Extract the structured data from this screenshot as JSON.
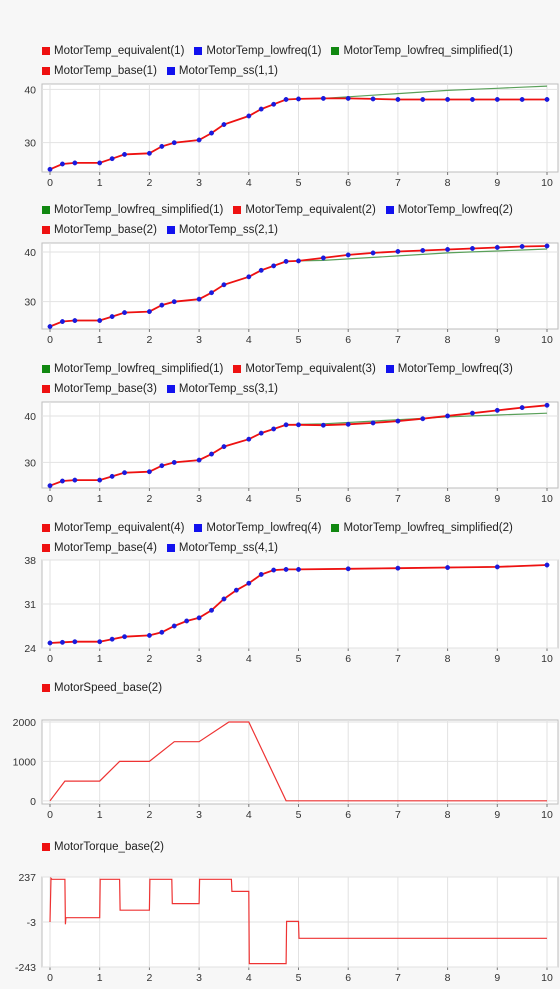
{
  "chart_data": [
    {
      "type": "line",
      "legend": [
        [
          "MotorTemp_equivalent(1)",
          "MotorTemp_lowfreq(1)",
          "MotorTemp_lowfreq_simplified(1)"
        ],
        [
          "MotorTemp_base(1)",
          "MotorTemp_ss(1,1)"
        ]
      ],
      "legend_colors": [
        [
          "#ee1111",
          "#1111ee",
          "#118811"
        ],
        [
          "#ee1111",
          "#1111ee"
        ]
      ],
      "xlim": [
        0,
        10
      ],
      "ylim": [
        24.5,
        41
      ],
      "xticks": [
        "0",
        "1",
        "2",
        "3",
        "4",
        "5",
        "6",
        "7",
        "8",
        "9",
        "10"
      ],
      "yticks": [
        30,
        40
      ],
      "grid": true,
      "series": [
        {
          "name": "MotorTemp_lowfreq_simplified(1)",
          "color": "#5aa05a",
          "marker": false,
          "x": [
            0,
            0.25,
            0.5,
            1,
            1.25,
            1.5,
            2,
            2.25,
            2.5,
            3,
            3.25,
            3.5,
            4,
            4.25,
            4.5,
            4.75,
            5,
            5.5,
            6,
            6.5,
            7,
            7.5,
            8,
            8.5,
            9,
            9.5,
            10
          ],
          "y": [
            25,
            26,
            26.2,
            26.2,
            27,
            27.8,
            28,
            29.3,
            30,
            30.5,
            31.8,
            33.4,
            35,
            36.3,
            37.2,
            38.1,
            38.2,
            38.3,
            38.6,
            38.9,
            39.2,
            39.5,
            39.8,
            40,
            40.2,
            40.4,
            40.6
          ]
        },
        {
          "name": "MotorTemp_equivalent(1)",
          "color": "#ee1111",
          "marker": true,
          "x": [
            0,
            0.25,
            0.5,
            1,
            1.25,
            1.5,
            2,
            2.25,
            2.5,
            3,
            3.25,
            3.5,
            4,
            4.25,
            4.5,
            4.75,
            5,
            5.5,
            6,
            6.5,
            7,
            7.5,
            8,
            8.5,
            9,
            9.5,
            10
          ],
          "y": [
            25,
            26,
            26.2,
            26.2,
            27,
            27.8,
            28,
            29.3,
            30,
            30.5,
            31.8,
            33.4,
            35,
            36.3,
            37.2,
            38.1,
            38.2,
            38.3,
            38.3,
            38.2,
            38.1,
            38.1,
            38.1,
            38.1,
            38.1,
            38.1,
            38.1
          ]
        }
      ]
    },
    {
      "type": "line",
      "legend": [
        [
          "MotorTemp_lowfreq_simplified(1)",
          "MotorTemp_equivalent(2)",
          "MotorTemp_lowfreq(2)"
        ],
        [
          "MotorTemp_base(2)",
          "MotorTemp_ss(2,1)"
        ]
      ],
      "legend_colors": [
        [
          "#118811",
          "#ee1111",
          "#1111ee"
        ],
        [
          "#ee1111",
          "#1111ee"
        ]
      ],
      "xlim": [
        0,
        10
      ],
      "ylim": [
        24.5,
        41.8
      ],
      "xticks": [
        "0",
        "1",
        "2",
        "3",
        "4",
        "5",
        "6",
        "7",
        "8",
        "9",
        "10"
      ],
      "yticks": [
        30,
        40
      ],
      "grid": true,
      "series": [
        {
          "name": "MotorTemp_lowfreq_simplified(1)",
          "color": "#5aa05a",
          "marker": false,
          "x": [
            0,
            0.25,
            0.5,
            1,
            1.25,
            1.5,
            2,
            2.25,
            2.5,
            3,
            3.25,
            3.5,
            4,
            4.25,
            4.5,
            4.75,
            5,
            5.5,
            6,
            6.5,
            7,
            7.5,
            8,
            8.5,
            9,
            9.5,
            10
          ],
          "y": [
            25,
            26,
            26.2,
            26.2,
            27,
            27.8,
            28,
            29.3,
            30,
            30.5,
            31.8,
            33.4,
            35,
            36.3,
            37.2,
            38.1,
            38.2,
            38.3,
            38.6,
            38.9,
            39.2,
            39.5,
            39.8,
            40,
            40.2,
            40.4,
            40.6
          ]
        },
        {
          "name": "MotorTemp_equivalent(2)",
          "color": "#ee1111",
          "marker": true,
          "x": [
            0,
            0.25,
            0.5,
            1,
            1.25,
            1.5,
            2,
            2.25,
            2.5,
            3,
            3.25,
            3.5,
            4,
            4.25,
            4.5,
            4.75,
            5,
            5.5,
            6,
            6.5,
            7,
            7.5,
            8,
            8.5,
            9,
            9.5,
            10
          ],
          "y": [
            25,
            26,
            26.2,
            26.2,
            27,
            27.8,
            28,
            29.3,
            30,
            30.5,
            31.8,
            33.4,
            35,
            36.3,
            37.2,
            38.1,
            38.2,
            38.8,
            39.4,
            39.8,
            40.1,
            40.3,
            40.5,
            40.7,
            40.9,
            41.1,
            41.2
          ]
        }
      ]
    },
    {
      "type": "line",
      "legend": [
        [
          "MotorTemp_lowfreq_simplified(1)",
          "MotorTemp_equivalent(3)",
          "MotorTemp_lowfreq(3)"
        ],
        [
          "MotorTemp_base(3)",
          "MotorTemp_ss(3,1)"
        ]
      ],
      "legend_colors": [
        [
          "#118811",
          "#ee1111",
          "#1111ee"
        ],
        [
          "#ee1111",
          "#1111ee"
        ]
      ],
      "xlim": [
        0,
        10
      ],
      "ylim": [
        24.5,
        43
      ],
      "xticks": [
        "0",
        "1",
        "2",
        "3",
        "4",
        "5",
        "6",
        "7",
        "8",
        "9",
        "10"
      ],
      "yticks": [
        30,
        40
      ],
      "grid": true,
      "series": [
        {
          "name": "MotorTemp_lowfreq_simplified(1)",
          "color": "#5aa05a",
          "marker": false,
          "x": [
            0,
            0.25,
            0.5,
            1,
            1.25,
            1.5,
            2,
            2.25,
            2.5,
            3,
            3.25,
            3.5,
            4,
            4.25,
            4.5,
            4.75,
            5,
            5.5,
            6,
            6.5,
            7,
            7.5,
            8,
            8.5,
            9,
            9.5,
            10
          ],
          "y": [
            25,
            26,
            26.2,
            26.2,
            27,
            27.8,
            28,
            29.3,
            30,
            30.5,
            31.8,
            33.4,
            35,
            36.3,
            37.2,
            38.1,
            38.2,
            38.3,
            38.6,
            38.9,
            39.2,
            39.5,
            39.8,
            40,
            40.2,
            40.4,
            40.6
          ]
        },
        {
          "name": "MotorTemp_equivalent(3)",
          "color": "#ee1111",
          "marker": true,
          "x": [
            0,
            0.25,
            0.5,
            1,
            1.25,
            1.5,
            2,
            2.25,
            2.5,
            3,
            3.25,
            3.5,
            4,
            4.25,
            4.5,
            4.75,
            5,
            5.5,
            6,
            6.5,
            7,
            7.5,
            8,
            8.5,
            9,
            9.5,
            10
          ],
          "y": [
            25,
            26,
            26.2,
            26.2,
            27,
            27.8,
            28,
            29.3,
            30,
            30.5,
            31.8,
            33.4,
            35,
            36.3,
            37.2,
            38.1,
            38.1,
            38,
            38.2,
            38.5,
            38.9,
            39.4,
            40,
            40.6,
            41.2,
            41.8,
            42.3
          ]
        }
      ]
    },
    {
      "type": "line",
      "legend": [
        [
          "MotorTemp_equivalent(4)",
          "MotorTemp_lowfreq(4)",
          "MotorTemp_lowfreq_simplified(2)"
        ],
        [
          "MotorTemp_base(4)",
          "MotorTemp_ss(4,1)"
        ]
      ],
      "legend_colors": [
        [
          "#ee1111",
          "#1111ee",
          "#118811"
        ],
        [
          "#ee1111",
          "#1111ee"
        ]
      ],
      "xlim": [
        0,
        10
      ],
      "ylim": [
        24,
        38
      ],
      "xticks": [
        "0",
        "1",
        "2",
        "3",
        "4",
        "5",
        "6",
        "7",
        "8",
        "9",
        "10"
      ],
      "yticks": [
        24,
        31,
        38
      ],
      "grid": true,
      "series": [
        {
          "name": "MotorTemp_lowfreq_simplified(2)",
          "color": "#5aa05a",
          "marker": false,
          "x": [
            0,
            0.25,
            0.5,
            1,
            1.25,
            1.5,
            2,
            2.25,
            2.5,
            2.75,
            3,
            3.25,
            3.5,
            3.75,
            4,
            4.25,
            4.5,
            4.75,
            5,
            6,
            7,
            8,
            9,
            10
          ],
          "y": [
            24.8,
            24.9,
            25,
            25,
            25.4,
            25.8,
            26,
            26.5,
            27.5,
            28.3,
            28.8,
            30,
            31.8,
            33.2,
            34.3,
            35.7,
            36.4,
            36.5,
            36.5,
            36.6,
            36.7,
            36.8,
            36.9,
            37.2
          ]
        },
        {
          "name": "MotorTemp_equivalent(4)",
          "color": "#ee1111",
          "marker": true,
          "x": [
            0,
            0.25,
            0.5,
            1,
            1.25,
            1.5,
            2,
            2.25,
            2.5,
            2.75,
            3,
            3.25,
            3.5,
            3.75,
            4,
            4.25,
            4.5,
            4.75,
            5,
            6,
            7,
            8,
            9,
            10
          ],
          "y": [
            24.8,
            24.9,
            25,
            25,
            25.4,
            25.8,
            26,
            26.5,
            27.5,
            28.3,
            28.8,
            30,
            31.8,
            33.2,
            34.3,
            35.7,
            36.4,
            36.5,
            36.5,
            36.6,
            36.7,
            36.8,
            36.9,
            37.2
          ]
        }
      ]
    },
    {
      "type": "line",
      "legend": [
        [
          "MotorSpeed_base(2)"
        ]
      ],
      "legend_colors": [
        [
          "#ee1111"
        ]
      ],
      "xlim": [
        0,
        10
      ],
      "ylim": [
        -80,
        2050
      ],
      "xticks": [
        "0",
        "1",
        "2",
        "3",
        "4",
        "5",
        "6",
        "7",
        "8",
        "9",
        "10"
      ],
      "yticks": [
        0,
        1000,
        2000
      ],
      "grid": true,
      "series": [
        {
          "name": "MotorSpeed_base(2)",
          "color": "#ee3333",
          "marker": false,
          "x": [
            0,
            0.3,
            1,
            1.4,
            2,
            2.5,
            3,
            3.6,
            4,
            4.75,
            10
          ],
          "y": [
            0,
            500,
            500,
            1000,
            1000,
            1500,
            1500,
            2000,
            2000,
            0,
            0
          ]
        }
      ]
    },
    {
      "type": "line",
      "legend": [
        [
          "MotorTorque_base(2)"
        ]
      ],
      "legend_colors": [
        [
          "#ee1111"
        ]
      ],
      "xlim": [
        0,
        10
      ],
      "ylim": [
        -243,
        237
      ],
      "xticks": [
        "0",
        "1",
        "2",
        "3",
        "4",
        "5",
        "6",
        "7",
        "8",
        "9",
        "10"
      ],
      "yticks": [
        -243,
        -3,
        237
      ],
      "grid": true,
      "series": [
        {
          "name": "MotorTorque_base(2)",
          "color": "#ee3333",
          "marker": false,
          "x": [
            0,
            0.02,
            0.04,
            0.3,
            0.31,
            0.32,
            1,
            1.01,
            1.4,
            1.41,
            2,
            2.01,
            2.45,
            2.46,
            3,
            3.01,
            3.65,
            3.66,
            4,
            4.01,
            4.75,
            4.76,
            5,
            5.01,
            10
          ],
          "y": [
            -3,
            230,
            225,
            225,
            -15,
            20,
            20,
            225,
            225,
            60,
            60,
            225,
            225,
            95,
            95,
            225,
            225,
            160,
            160,
            -225,
            -225,
            0,
            0,
            -90,
            -90
          ]
        }
      ]
    }
  ]
}
